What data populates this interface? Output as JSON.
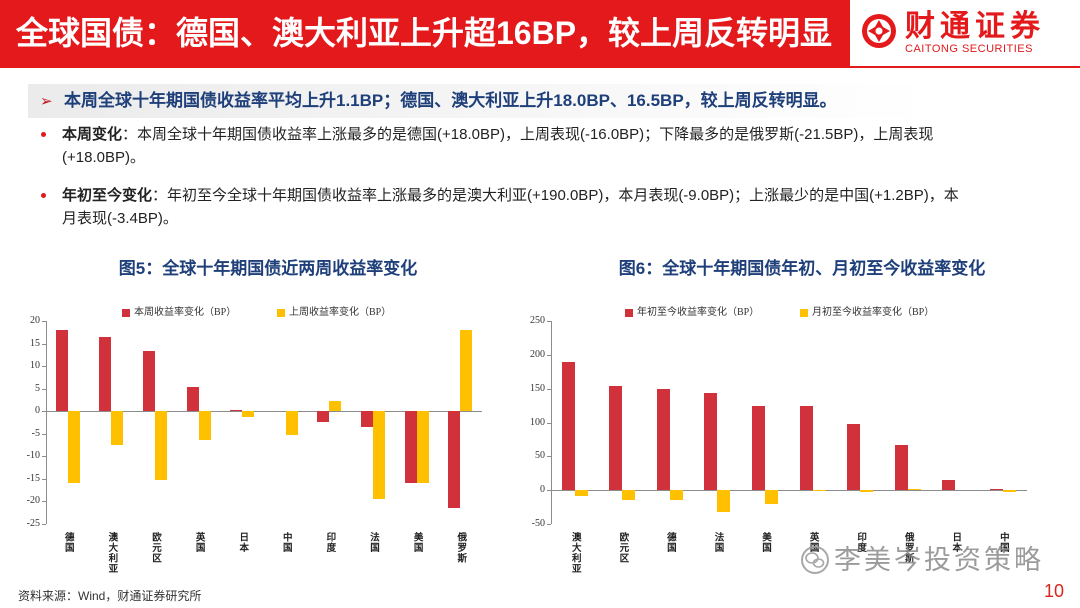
{
  "header": {
    "title": "全球国债：德国、澳大利亚上升超16BP，较上周反转明显",
    "logo_cn": "财通证券",
    "logo_en": "CAITONG SECURITIES",
    "logo_icon": "caitong-logo-icon"
  },
  "summary": {
    "icon": "arrow-bullet-icon",
    "text": "本周全球十年期国债收益率平均上升1.1BP；德国、澳大利亚上升18.0BP、16.5BP，较上周反转明显。"
  },
  "bullets": [
    {
      "label": "本周变化",
      "text": "：本周全球十年期国债收益率上涨最多的是德国(+18.0BP)，上周表现(-16.0BP)；下降最多的是俄罗斯(-21.5BP)，上周表现(+18.0BP)。"
    },
    {
      "label": "年初至今变化",
      "text": "：年初至今全球十年期国债收益率上涨最多的是澳大利亚(+190.0BP)，本月表现(-9.0BP)；上涨最少的是中国(+1.2BP)，本月表现(-3.4BP)。"
    }
  ],
  "chart_data": [
    {
      "type": "bar",
      "title": "图5：全球十年期国债近两周收益率变化",
      "categories": [
        "德国",
        "澳大利亚",
        "欧元区",
        "英国",
        "日本",
        "中国",
        "印度",
        "法国",
        "美国",
        "俄罗斯"
      ],
      "series": [
        {
          "name": "本周收益率变化（BP）",
          "color": "#d0313a",
          "values": [
            18.0,
            16.5,
            13.3,
            5.3,
            0.3,
            0.0,
            -2.4,
            -3.5,
            -16.0,
            -21.5
          ]
        },
        {
          "name": "上周收益率变化（BP）",
          "color": "#ffc000",
          "values": [
            -16.0,
            -7.5,
            -15.3,
            -6.3,
            -1.2,
            -5.3,
            2.2,
            -19.5,
            -16.0,
            18.0
          ]
        }
      ],
      "yticks": [
        20,
        15,
        10,
        5,
        0,
        -5,
        -10,
        -15,
        -20,
        -25
      ],
      "ylim": [
        -25,
        20
      ],
      "grid": false,
      "legend": "top"
    },
    {
      "type": "bar",
      "title": "图6：全球十年期国债年初、月初至今收益率变化",
      "categories": [
        "澳大利亚",
        "欧元区",
        "德国",
        "法国",
        "美国",
        "英国",
        "印度",
        "俄罗斯",
        "日本",
        "中国"
      ],
      "series": [
        {
          "name": "年初至今收益率变化（BP）",
          "color": "#d0313a",
          "values": [
            190.0,
            154,
            150,
            143,
            125,
            124,
            98,
            67,
            15,
            1.2
          ]
        },
        {
          "name": "月初至今收益率变化（BP）",
          "color": "#ffc000",
          "values": [
            -9.0,
            -14,
            -14,
            -33,
            -21,
            -1,
            -3,
            2,
            0,
            -3.4
          ]
        }
      ],
      "yticks": [
        250,
        200,
        150,
        100,
        50,
        0,
        -50
      ],
      "ylim": [
        -50,
        250
      ],
      "grid": false,
      "legend": "top"
    }
  ],
  "watermark": {
    "icon": "wechat-icon",
    "text": "李美岑投资策略"
  },
  "footer": {
    "source": "资料来源：Wind，财通证券研究所",
    "page_number": "10"
  },
  "colors": {
    "brand_red": "#e3191c",
    "heading_blue": "#1e3f7a"
  }
}
